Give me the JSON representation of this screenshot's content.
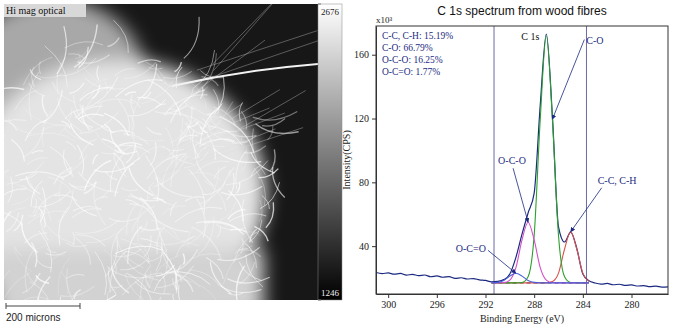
{
  "chart_data": {
    "type": "line",
    "title": "C 1s spectrum from wood fibres",
    "x_label": "Binding Energy (eV)",
    "y_label": "Intensity(CPS)",
    "y_multiplier_label": "x10³",
    "peak_label": "C 1s",
    "annotations": [
      "C-C, C-H: 15.19%",
      "C-O: 66.79%",
      "O-C-O: 16.25%",
      "O-C=O: 1.77%"
    ],
    "x": [
      301,
      300.5,
      300,
      299.5,
      299,
      298.5,
      298,
      297.5,
      297,
      296.5,
      296,
      295.5,
      295,
      294.5,
      294,
      293.5,
      293,
      292.5,
      292,
      291.5,
      291,
      290.5,
      290,
      289.5,
      289,
      288.5,
      288,
      287.5,
      287,
      286.5,
      286,
      285.5,
      285,
      284.5,
      284,
      283.5,
      283,
      282.5,
      282,
      281.5,
      281,
      280.5,
      280,
      279.5,
      279,
      278.5,
      278,
      277.5,
      277
    ],
    "series": [
      {
        "color": "#1b2a80",
        "values": [
          23.5,
          22.8,
          23.2,
          22.4,
          22.9,
          21.8,
          22.3,
          21.5,
          21.9,
          20.8,
          21.3,
          20.5,
          20.9,
          19.8,
          20.2,
          19.4,
          19.7,
          18.9,
          18.5,
          17.6,
          17.9,
          19.0,
          22.5,
          33.0,
          47.5,
          60.8,
          73.2,
          128.5,
          173.0,
          121.2,
          52.1,
          42.6,
          48.8,
          38.7,
          22.6,
          18.3,
          16.9,
          16.2,
          16.6,
          15.8,
          16.1,
          15.4,
          15.7,
          15.0,
          15.3,
          14.6,
          14.9,
          14.3,
          14.5
        ]
      },
      {
        "color": "#444444",
        "line_style": "dashed",
        "values": [
          null,
          null,
          null,
          null,
          null,
          null,
          null,
          null,
          null,
          null,
          null,
          null,
          null,
          null,
          null,
          null,
          null,
          null,
          null,
          17,
          17,
          17,
          17,
          17,
          17,
          17,
          17,
          17,
          17,
          17,
          17,
          17,
          17,
          17,
          17,
          17,
          null,
          null,
          null,
          null,
          null,
          null,
          null,
          null,
          null,
          null,
          null,
          null,
          null
        ]
      },
      {
        "name": "C-C, C-H",
        "color": "#d9534f",
        "values": [
          null,
          null,
          null,
          null,
          null,
          null,
          null,
          null,
          null,
          null,
          null,
          null,
          null,
          null,
          null,
          null,
          null,
          null,
          null,
          17,
          17,
          17,
          17,
          17,
          17,
          17,
          17,
          17,
          17,
          17.8,
          23.1,
          38.2,
          49,
          38.2,
          23.1,
          17.8,
          null,
          null,
          null,
          null,
          null,
          null,
          null,
          null,
          null,
          null,
          null,
          null,
          null
        ]
      },
      {
        "name": "C-O",
        "color": "#2ca02c",
        "values": [
          null,
          null,
          null,
          null,
          null,
          null,
          null,
          null,
          null,
          null,
          null,
          null,
          null,
          null,
          null,
          null,
          null,
          null,
          null,
          17,
          17,
          17,
          17,
          17,
          17.2,
          20.8,
          46.7,
          119.6,
          172,
          119.6,
          46.7,
          20.8,
          17.2,
          17,
          17,
          17,
          null,
          null,
          null,
          null,
          null,
          null,
          null,
          null,
          null,
          null,
          null,
          null,
          null
        ]
      },
      {
        "name": "O-C-O",
        "color": "#d64fc8",
        "values": [
          null,
          null,
          null,
          null,
          null,
          null,
          null,
          null,
          null,
          null,
          null,
          null,
          null,
          null,
          null,
          null,
          null,
          null,
          null,
          17,
          17,
          17.1,
          18.7,
          26.5,
          43.9,
          55,
          43.9,
          26.5,
          18.7,
          17.1,
          17,
          17,
          17,
          17,
          17,
          17,
          null,
          null,
          null,
          null,
          null,
          null,
          null,
          null,
          null,
          null,
          null,
          null,
          null
        ]
      },
      {
        "name": "O-C=O",
        "color": "#4a5fd8",
        "values": [
          null,
          null,
          null,
          null,
          null,
          null,
          null,
          null,
          null,
          null,
          null,
          null,
          null,
          null,
          null,
          null,
          null,
          null,
          null,
          17,
          17.3,
          18.5,
          21.2,
          23,
          21.2,
          18.5,
          17.3,
          17,
          17,
          17,
          17,
          17,
          17,
          17,
          17,
          17,
          null,
          null,
          null,
          null,
          null,
          null,
          null,
          null,
          null,
          null,
          null,
          null,
          null
        ]
      }
    ],
    "fit_region": [
      291.3,
      283.7
    ],
    "xlim": [
      301,
      277
    ],
    "xticks": [
      300,
      296,
      292,
      288,
      284,
      280
    ],
    "ylim": [
      10,
      178
    ],
    "yticks": [
      40,
      80,
      120,
      160
    ],
    "grid": false
  },
  "image_panel": {
    "title": "Hi mag optical",
    "colorbar": {
      "range": [
        1246,
        2676
      ],
      "ticks": [
        2676,
        1246
      ]
    },
    "scale_bar": "200 microns"
  }
}
